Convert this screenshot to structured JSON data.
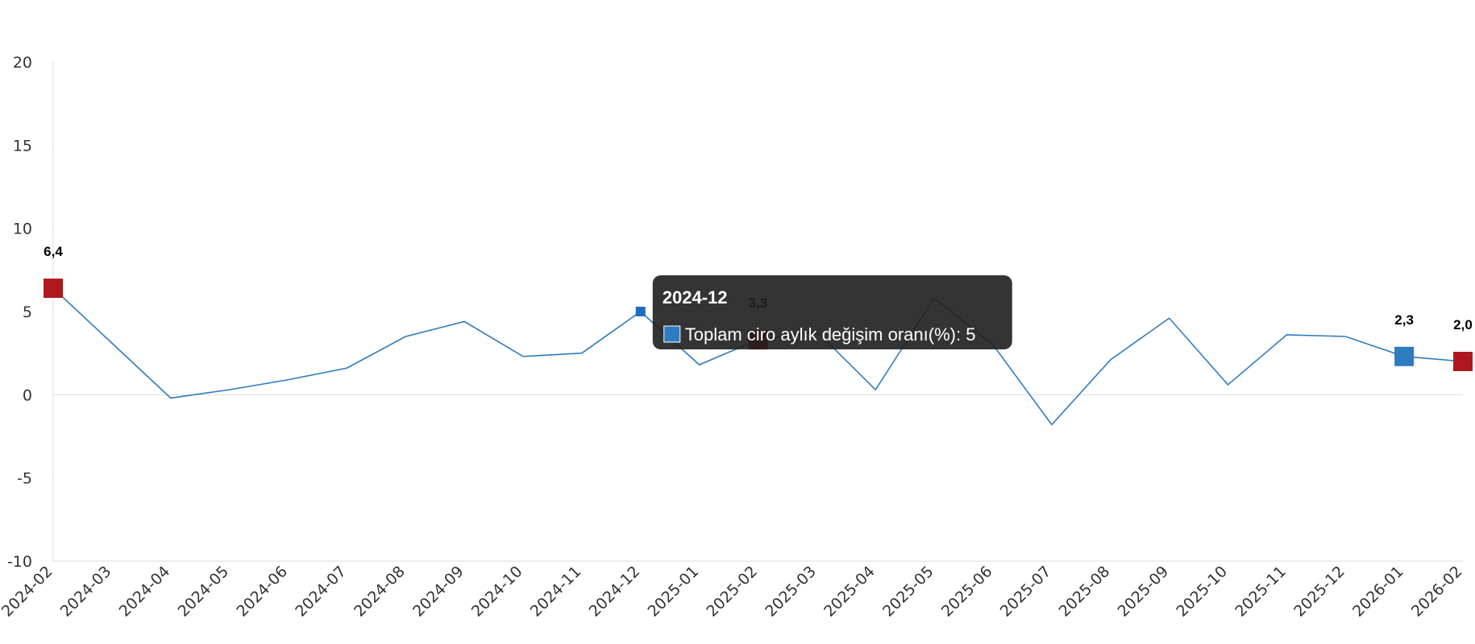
{
  "chart_data": {
    "type": "line",
    "categories": [
      "2024-02",
      "2024-03",
      "2024-04",
      "2024-05",
      "2024-06",
      "2024-07",
      "2024-08",
      "2024-09",
      "2024-10",
      "2024-11",
      "2024-12",
      "2025-01",
      "2025-02",
      "2025-03",
      "2025-04",
      "2025-05",
      "2025-06",
      "2025-07",
      "2025-08",
      "2025-09",
      "2025-10",
      "2025-11",
      "2025-12",
      "2026-01",
      "2026-02"
    ],
    "series": [
      {
        "name": "Toplam ciro aylık değişim oranı(%)",
        "color": "#2e7bbf",
        "values": [
          6.4,
          3.1,
          -0.2,
          0.3,
          0.9,
          1.6,
          3.5,
          4.4,
          2.3,
          2.5,
          5,
          1.8,
          3.3,
          3.8,
          0.3,
          5.8,
          3.0,
          -1.8,
          2.1,
          4.6,
          0.6,
          3.6,
          3.5,
          2.3,
          2.0
        ],
        "value_labels": [
          "6,4",
          null,
          null,
          null,
          null,
          null,
          null,
          null,
          null,
          null,
          null,
          null,
          "3,3",
          null,
          null,
          null,
          null,
          null,
          null,
          null,
          null,
          null,
          null,
          "2,3",
          "2,0"
        ],
        "marker_colors": [
          "#b01820",
          null,
          null,
          null,
          null,
          null,
          null,
          null,
          null,
          null,
          "#1f6fc0",
          null,
          "#b01820",
          null,
          null,
          null,
          null,
          null,
          null,
          null,
          null,
          null,
          null,
          "#2e7bbf",
          "#b01820"
        ]
      }
    ],
    "ylim": [
      -10,
      20
    ],
    "yticks": [
      -10,
      -5,
      0,
      5,
      10,
      15,
      20
    ],
    "grid": false,
    "tooltip": {
      "title": "2024-12",
      "text": "Toplam ciro aylık değişim oranı(%): 5"
    }
  }
}
